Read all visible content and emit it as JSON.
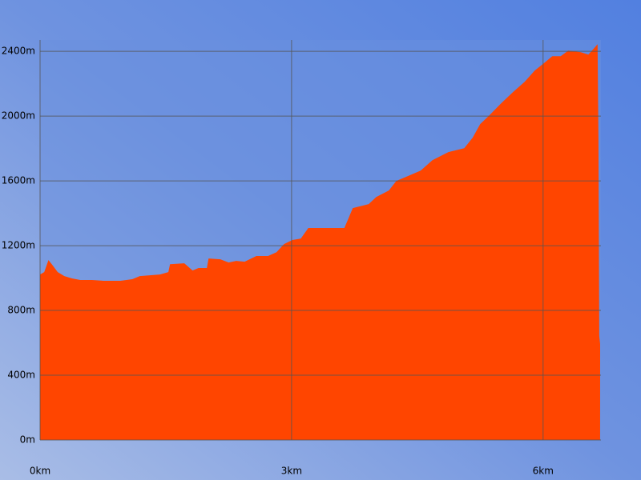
{
  "chart_data": {
    "type": "area",
    "x": [
      0,
      0.05,
      0.1,
      0.14,
      0.21,
      0.29,
      0.38,
      0.48,
      0.62,
      0.76,
      0.96,
      1.1,
      1.19,
      1.43,
      1.53,
      1.55,
      1.72,
      1.82,
      1.89,
      1.99,
      2.01,
      2.15,
      2.25,
      2.34,
      2.44,
      2.58,
      2.72,
      2.82,
      2.91,
      3.01,
      3.11,
      3.2,
      3.63,
      3.73,
      3.92,
      4.01,
      4.16,
      4.25,
      4.39,
      4.54,
      4.68,
      4.87,
      5.06,
      5.16,
      5.25,
      5.35,
      5.49,
      5.64,
      5.78,
      5.9,
      6.02,
      6.11,
      6.21,
      6.3,
      6.45,
      6.54,
      6.61,
      6.65,
      6.66,
      6.67,
      6.68
    ],
    "values": [
      1022,
      1037,
      1111,
      1086,
      1037,
      1012,
      998,
      988,
      988,
      983,
      983,
      993,
      1012,
      1022,
      1037,
      1086,
      1091,
      1047,
      1062,
      1062,
      1121,
      1116,
      1096,
      1106,
      1101,
      1136,
      1136,
      1160,
      1210,
      1235,
      1244,
      1309,
      1309,
      1432,
      1457,
      1501,
      1541,
      1600,
      1630,
      1664,
      1728,
      1778,
      1802,
      1867,
      1951,
      2000,
      2074,
      2148,
      2212,
      2281,
      2331,
      2370,
      2370,
      2405,
      2395,
      2380,
      2420,
      2444,
      1852,
      642,
      593
    ],
    "color": "#ff4500",
    "xlim": [
      0,
      6.69
    ],
    "ylim": [
      0,
      2470
    ],
    "xticks": [
      {
        "value": 0,
        "label": "0km"
      },
      {
        "value": 3,
        "label": "3km"
      },
      {
        "value": 6,
        "label": "6km"
      }
    ],
    "yticks": [
      {
        "value": 0,
        "label": "0m"
      },
      {
        "value": 400,
        "label": "400m"
      },
      {
        "value": 800,
        "label": "800m"
      },
      {
        "value": 1200,
        "label": "1200m"
      },
      {
        "value": 1600,
        "label": "1600m"
      },
      {
        "value": 2000,
        "label": "2000m"
      },
      {
        "value": 2400,
        "label": "2400m"
      }
    ],
    "grid": true
  }
}
